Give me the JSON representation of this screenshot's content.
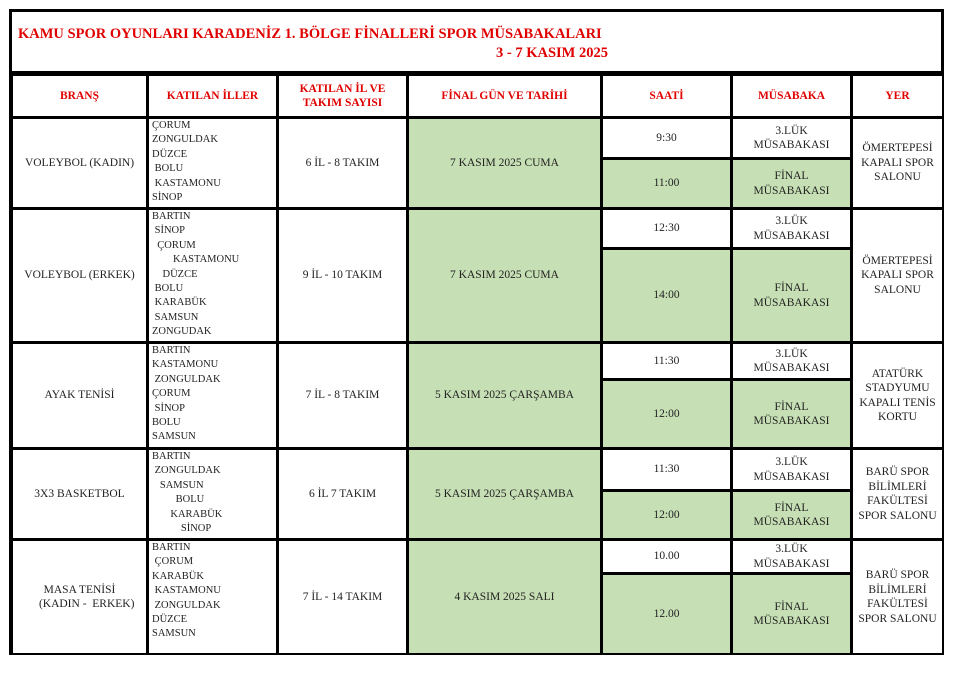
{
  "title": "KAMU SPOR OYUNLARI KARADENİZ 1. BÖLGE FİNALLERİ SPOR MÜSABAKALARI",
  "subtitle": "3 - 7 KASIM 2025",
  "headers": [
    "BRANŞ",
    "KATILAN İLLER",
    "KATILAN İL VE\nTAKIM SAYISI",
    "FİNAL GÜN VE TARİHİ",
    "SAATİ",
    "MÜSABAKA",
    "YER"
  ],
  "colors": {
    "header_text": "#e00000",
    "highlight": "#c6dfb4"
  },
  "rows": [
    {
      "brans": "VOLEYBOL (KADIN)",
      "iller": "ÇORUM\nZONGULDAK\nDÜZCE\n BOLU\n KASTAMONU\nSİNOP",
      "sayi": "6 İL - 8 TAKIM",
      "tarih": "7 KASIM 2025 CUMA",
      "saat1": "9:30",
      "mus1": "3.LÜK\nMÜSABAKASI",
      "saat2": "11:00",
      "mus2": "FİNAL\nMÜSABAKASI",
      "yer": "ÖMERTEPESİ\nKAPALI SPOR\nSALONU"
    },
    {
      "brans": "VOLEYBOL (ERKEK)",
      "iller": "BARTIN\n SİNOP\n  ÇORUM\n        KASTAMONU\n    DÜZCE\n BOLU\n KARABÜK\n SAMSUN\nZONGUDAK",
      "sayi": "9 İL - 10 TAKIM",
      "tarih": "7 KASIM 2025 CUMA",
      "saat1": "12:30",
      "mus1": "3.LÜK\nMÜSABAKASI",
      "saat2": "14:00",
      "mus2": "FİNAL\nMÜSABAKASI",
      "yer": "ÖMERTEPESİ\nKAPALI SPOR\nSALONU"
    },
    {
      "brans": "AYAK TENİSİ",
      "iller": "BARTIN\nKASTAMONU\n ZONGULDAK\nÇORUM\n SİNOP\nBOLU\nSAMSUN",
      "sayi": "7 İL - 8 TAKIM",
      "tarih": "5 KASIM 2025 ÇARŞAMBA",
      "saat1": "11:30",
      "mus1": "3.LÜK\nMÜSABAKASI",
      "saat2": "12:00",
      "mus2": "FİNAL\nMÜSABAKASI",
      "yer": "ATATÜRK\nSTADYUMU\nKAPALI TENİS\nKORTU"
    },
    {
      "brans": "3X3 BASKETBOL",
      "iller": "BARTIN\n ZONGULDAK\n   SAMSUN\n         BOLU\n       KARABÜK\n           SİNOP",
      "sayi": "6 İL 7 TAKIM",
      "tarih": "5 KASIM 2025 ÇARŞAMBA",
      "saat1": "11:30",
      "mus1": "3.LÜK\nMÜSABAKASI",
      "saat2": "12:00",
      "mus2": "FİNAL\nMÜSABAKASI",
      "yer": "BARÜ SPOR\nBİLİMLERİ\nFAKÜLTESİ\nSPOR SALONU"
    },
    {
      "brans": "MASA TENİSİ\n     (KADIN -  ERKEK)",
      "iller": "BARTIN\n ÇORUM\nKARABÜK\n KASTAMONU\n ZONGULDAK\nDÜZCE\nSAMSUN",
      "sayi": "7 İL - 14 TAKIM",
      "tarih": "4 KASIM 2025 SALI",
      "saat1": "10.00",
      "mus1": "3.LÜK\nMÜSABAKASI",
      "saat2": "12.00",
      "mus2": "FİNAL\nMÜSABAKASI",
      "yer": "BARÜ SPOR\nBİLİMLERİ\nFAKÜLTESİ\nSPOR SALONU"
    }
  ]
}
